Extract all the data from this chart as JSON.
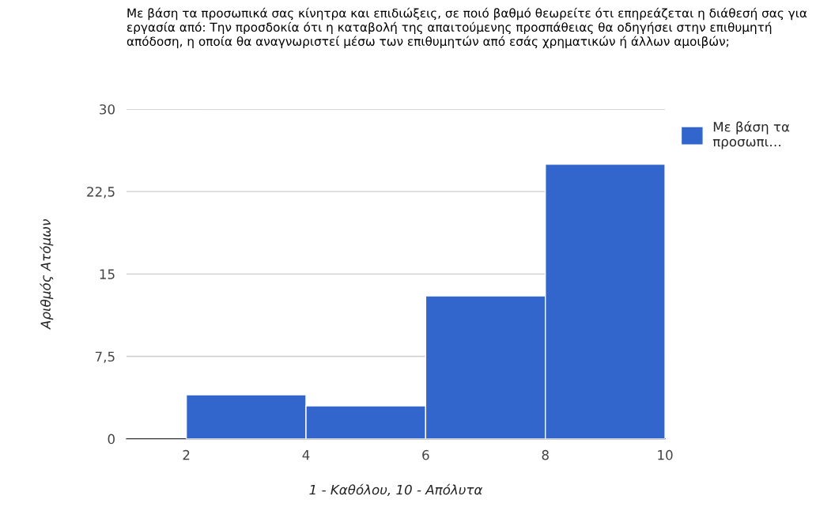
{
  "chart_data": {
    "type": "histogram",
    "title": "Με βάση τα προσωπικά σας κίνητρα και επιδιώξεις, σε ποιό βαθμό θεωρείτε ότι επηρεάζεται η διάθεσή σας για εργασία από: Την προσδοκία ότι η καταβολή της απαιτούμενης προσπάθειας θα οδηγήσει στην επιθυμητή απόδοση, η οποία θα αναγνωριστεί μέσω των επιθυμητών από εσάς χρηματικών ή άλλων αμοιβών;",
    "xlabel": "1 - Καθόλου, 10 - Απόλυτα",
    "ylabel": "Αριθμός Ατόμων",
    "bins": [
      2,
      4,
      6,
      8,
      10
    ],
    "series": [
      {
        "name": "Με βάση τα προσωπι…",
        "color": "#3366cc",
        "values": [
          4,
          3,
          13,
          25
        ]
      }
    ],
    "xlim": [
      1,
      10
    ],
    "xticks": [
      2,
      4,
      6,
      8,
      10
    ],
    "ylim": [
      0,
      30
    ],
    "yticks": [
      0,
      {
        "value": 7.5,
        "label": "7,5"
      },
      15,
      {
        "value": 22.5,
        "label": "22,5"
      },
      30
    ],
    "grid": "y",
    "legend": "right"
  }
}
